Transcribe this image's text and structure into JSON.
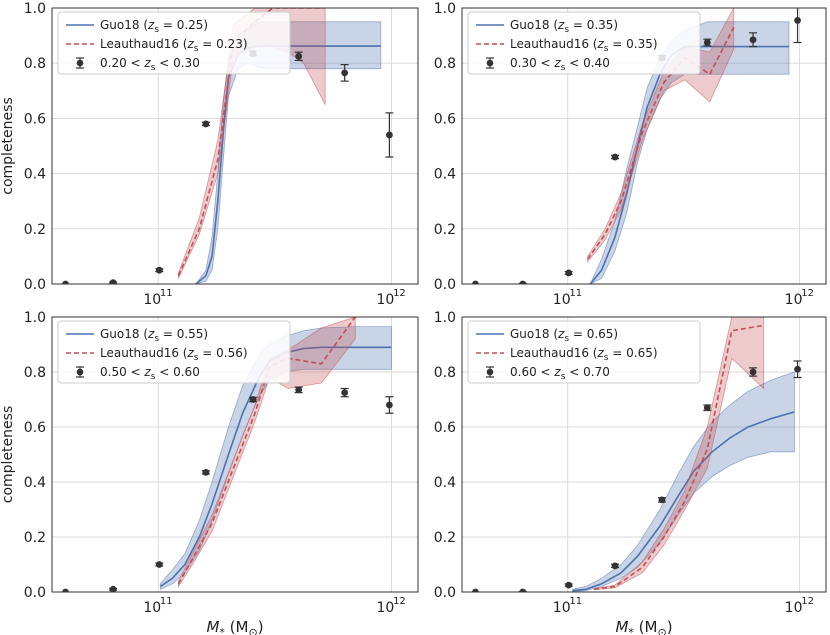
{
  "chart_data": [
    {
      "type": "line",
      "panel": "top-left",
      "xscale": "log",
      "xlim": [
        35000000000,
        1300000000000
      ],
      "ylim": [
        0,
        1.0
      ],
      "ylabel": "completeness",
      "xlabel": "",
      "legend_position": "top-left",
      "series": [
        {
          "name": "Guo18 (z_s = 0.25)",
          "legend_label": "Guo18 (",
          "z_label": "= 0.25)",
          "color": "#4c72b0",
          "style": "solid",
          "x": [
            145000000000.0,
            160000000000.0,
            170000000000.0,
            180000000000.0,
            190000000000.0,
            200000000000.0,
            220000000000.0,
            240000000000.0,
            270000000000.0,
            300000000000.0,
            400000000000.0,
            600000000000.0,
            900000000000.0
          ],
          "y": [
            0.0,
            0.03,
            0.1,
            0.3,
            0.55,
            0.75,
            0.83,
            0.855,
            0.862,
            0.862,
            0.862,
            0.862,
            0.862
          ],
          "band_lower": [
            0.0,
            0.01,
            0.05,
            0.2,
            0.45,
            0.68,
            0.78,
            0.8,
            0.785,
            0.78,
            0.78,
            0.78,
            0.78
          ],
          "band_upper": [
            0.0,
            0.05,
            0.17,
            0.4,
            0.66,
            0.82,
            0.87,
            0.92,
            0.95,
            0.95,
            0.95,
            0.95,
            0.95
          ]
        },
        {
          "name": "Leauthaud16 (z_s = 0.23)",
          "legend_label": "Leauthaud16 (",
          "z_label": "= 0.23)",
          "color": "#c44e52",
          "style": "dashed",
          "x": [
            122000000000.0,
            150000000000.0,
            180000000000.0,
            210000000000.0,
            260000000000.0,
            310000000000.0,
            360000000000.0,
            420000000000.0,
            520000000000.0
          ],
          "y": [
            0.03,
            0.2,
            0.45,
            0.88,
            0.95,
            1.0,
            1.0,
            1.0,
            1.0
          ],
          "band_lower": [
            0.02,
            0.18,
            0.4,
            0.82,
            0.86,
            0.86,
            0.84,
            0.8,
            0.65
          ],
          "band_upper": [
            0.04,
            0.24,
            0.52,
            0.94,
            1.0,
            1.0,
            1.0,
            1.0,
            1.0
          ]
        },
        {
          "name": "0.20 < z_s < 0.30",
          "type": "errorbar",
          "color": "#333333",
          "x": [
            40000000000.0,
            64000000000.0,
            101000000000.0,
            160000000000.0,
            255000000000.0,
            400000000000.0,
            630000000000.0,
            980000000000.0
          ],
          "y": [
            0.0,
            0.005,
            0.05,
            0.58,
            0.835,
            0.825,
            0.765,
            0.54
          ],
          "err": [
            0.0,
            0.003,
            0.005,
            0.006,
            0.008,
            0.015,
            0.03,
            0.08
          ]
        }
      ]
    },
    {
      "type": "line",
      "panel": "top-right",
      "xscale": "log",
      "xlim": [
        35000000000,
        1300000000000
      ],
      "ylim": [
        0,
        1.0
      ],
      "ylabel": "",
      "xlabel": "",
      "legend_position": "top-left",
      "series": [
        {
          "name": "Guo18 (z_s = 0.35)",
          "legend_label": "Guo18 (",
          "z_label": "= 0.35)",
          "color": "#4c72b0",
          "style": "solid",
          "x": [
            125000000000.0,
            140000000000.0,
            160000000000.0,
            180000000000.0,
            200000000000.0,
            220000000000.0,
            250000000000.0,
            280000000000.0,
            320000000000.0,
            400000000000.0,
            600000000000.0,
            900000000000.0
          ],
          "y": [
            0.0,
            0.05,
            0.17,
            0.33,
            0.5,
            0.64,
            0.76,
            0.83,
            0.86,
            0.86,
            0.86,
            0.86
          ],
          "band_lower": [
            0.0,
            0.02,
            0.12,
            0.26,
            0.44,
            0.56,
            0.67,
            0.73,
            0.76,
            0.76,
            0.76,
            0.76
          ],
          "band_upper": [
            0.0,
            0.09,
            0.23,
            0.42,
            0.57,
            0.71,
            0.82,
            0.88,
            0.92,
            0.95,
            0.95,
            0.95
          ]
        },
        {
          "name": "Leauthaud16 (z_s = 0.35)",
          "legend_label": "Leauthaud16 (",
          "z_label": "= 0.35)",
          "color": "#c44e52",
          "style": "dashed",
          "x": [
            122000000000.0,
            145000000000.0,
            170000000000.0,
            210000000000.0,
            260000000000.0,
            320000000000.0,
            410000000000.0,
            520000000000.0
          ],
          "y": [
            0.09,
            0.18,
            0.3,
            0.55,
            0.73,
            0.82,
            0.76,
            0.93
          ],
          "band_lower": [
            0.08,
            0.16,
            0.27,
            0.52,
            0.7,
            0.74,
            0.66,
            0.85
          ],
          "band_upper": [
            0.1,
            0.2,
            0.33,
            0.58,
            0.77,
            0.86,
            0.84,
            1.0
          ]
        },
        {
          "name": "0.30 < z_s < 0.40",
          "type": "errorbar",
          "color": "#333333",
          "x": [
            40000000000.0,
            64000000000.0,
            101000000000.0,
            160000000000.0,
            255000000000.0,
            400000000000.0,
            630000000000.0,
            980000000000.0
          ],
          "y": [
            0.0,
            0.0,
            0.04,
            0.46,
            0.82,
            0.875,
            0.885,
            0.955
          ],
          "err": [
            0.0,
            0.002,
            0.005,
            0.006,
            0.008,
            0.012,
            0.025,
            0.08
          ]
        }
      ]
    },
    {
      "type": "line",
      "panel": "bottom-left",
      "xscale": "log",
      "xlim": [
        35000000000,
        1300000000000
      ],
      "ylim": [
        0,
        1.0
      ],
      "ylabel": "completeness",
      "xlabel": "M* (M⊙)",
      "legend_position": "top-left",
      "series": [
        {
          "name": "Guo18 (z_s = 0.55)",
          "legend_label": "Guo18 (",
          "z_label": "= 0.55)",
          "color": "#4c72b0",
          "style": "solid",
          "x": [
            102000000000.0,
            115000000000.0,
            130000000000.0,
            150000000000.0,
            170000000000.0,
            200000000000.0,
            230000000000.0,
            270000000000.0,
            300000000000.0,
            350000000000.0,
            420000000000.0,
            500000000000.0,
            700000000000.0,
            1000000000000.0
          ],
          "y": [
            0.02,
            0.05,
            0.1,
            0.2,
            0.32,
            0.5,
            0.65,
            0.78,
            0.84,
            0.87,
            0.885,
            0.89,
            0.89,
            0.89
          ],
          "band_lower": [
            0.01,
            0.03,
            0.07,
            0.15,
            0.26,
            0.43,
            0.57,
            0.71,
            0.77,
            0.8,
            0.81,
            0.81,
            0.81,
            0.81
          ],
          "band_upper": [
            0.03,
            0.08,
            0.14,
            0.26,
            0.4,
            0.6,
            0.75,
            0.86,
            0.9,
            0.93,
            0.95,
            0.96,
            0.965,
            0.965
          ]
        },
        {
          "name": "Leauthaud16 (z_s = 0.56)",
          "legend_label": "Leauthaud16 (",
          "z_label": "= 0.56)",
          "color": "#c44e52",
          "style": "dashed",
          "x": [
            122000000000.0,
            140000000000.0,
            170000000000.0,
            210000000000.0,
            260000000000.0,
            300000000000.0,
            360000000000.0,
            500000000000.0,
            700000000000.0
          ],
          "y": [
            0.03,
            0.12,
            0.25,
            0.45,
            0.65,
            0.82,
            0.85,
            0.83,
            1.0
          ],
          "band_lower": [
            0.02,
            0.1,
            0.22,
            0.42,
            0.62,
            0.78,
            0.74,
            0.76,
            0.92
          ],
          "band_upper": [
            0.04,
            0.14,
            0.28,
            0.48,
            0.68,
            0.85,
            0.88,
            0.96,
            1.0
          ]
        },
        {
          "name": "0.50 < z_s < 0.60",
          "type": "errorbar",
          "color": "#333333",
          "x": [
            40000000000.0,
            64000000000.0,
            101000000000.0,
            160000000000.0,
            255000000000.0,
            400000000000.0,
            630000000000.0,
            980000000000.0
          ],
          "y": [
            0.0,
            0.01,
            0.1,
            0.435,
            0.7,
            0.735,
            0.725,
            0.68
          ],
          "err": [
            0.0,
            0.003,
            0.005,
            0.006,
            0.008,
            0.01,
            0.015,
            0.03
          ]
        }
      ]
    },
    {
      "type": "line",
      "panel": "bottom-right",
      "xscale": "log",
      "xlim": [
        35000000000,
        1300000000000
      ],
      "ylim": [
        0,
        1.0
      ],
      "ylabel": "",
      "xlabel": "M* (M⊙)",
      "legend_position": "top-left",
      "series": [
        {
          "name": "Guo18 (z_s = 0.65)",
          "legend_label": "Guo18 (",
          "z_label": "= 0.65)",
          "color": "#4c72b0",
          "style": "solid",
          "x": [
            105000000000.0,
            120000000000.0,
            140000000000.0,
            170000000000.0,
            200000000000.0,
            250000000000.0,
            300000000000.0,
            350000000000.0,
            420000000000.0,
            500000000000.0,
            600000000000.0,
            750000000000.0,
            950000000000.0
          ],
          "y": [
            0.005,
            0.01,
            0.03,
            0.07,
            0.13,
            0.24,
            0.35,
            0.44,
            0.51,
            0.56,
            0.6,
            0.63,
            0.655
          ],
          "band_lower": [
            0.002,
            0.005,
            0.02,
            0.05,
            0.09,
            0.18,
            0.28,
            0.36,
            0.42,
            0.46,
            0.49,
            0.51,
            0.51
          ],
          "band_upper": [
            0.01,
            0.02,
            0.05,
            0.1,
            0.17,
            0.3,
            0.43,
            0.53,
            0.62,
            0.68,
            0.73,
            0.77,
            0.8
          ]
        },
        {
          "name": "Leauthaud16 (z_s = 0.65)",
          "legend_label": "Leauthaud16 (",
          "z_label": "= 0.65)",
          "color": "#c44e52",
          "style": "dashed",
          "x": [
            130000000000.0,
            160000000000.0,
            210000000000.0,
            260000000000.0,
            320000000000.0,
            400000000000.0,
            510000000000.0,
            700000000000.0
          ],
          "y": [
            0.01,
            0.02,
            0.09,
            0.2,
            0.33,
            0.52,
            0.95,
            0.97
          ],
          "band_lower": [
            0.008,
            0.015,
            0.07,
            0.17,
            0.3,
            0.45,
            0.85,
            0.74
          ],
          "band_upper": [
            0.012,
            0.025,
            0.11,
            0.23,
            0.37,
            0.6,
            1.0,
            1.0
          ]
        },
        {
          "name": "0.60 < z_s < 0.70",
          "type": "errorbar",
          "color": "#333333",
          "x": [
            40000000000.0,
            64000000000.0,
            101000000000.0,
            160000000000.0,
            255000000000.0,
            400000000000.0,
            630000000000.0,
            980000000000.0
          ],
          "y": [
            0.0,
            0.0,
            0.025,
            0.095,
            0.335,
            0.67,
            0.8,
            0.81
          ],
          "err": [
            0.0,
            0.002,
            0.004,
            0.006,
            0.008,
            0.01,
            0.015,
            0.03
          ]
        }
      ]
    }
  ],
  "axes": {
    "yticks": [
      "0.0",
      "0.2",
      "0.4",
      "0.6",
      "0.8",
      "1.0"
    ],
    "xtick_base": "10",
    "xtick_exp_11": "11",
    "xtick_exp_12": "12",
    "ylabel": "completeness",
    "xlabel_symbol": "M",
    "xlabel_sub": "*",
    "xlabel_unit_open": " (M",
    "xlabel_unit_sub": "⊙",
    "xlabel_unit_close": ")",
    "z_symbol": "z",
    "z_sub": "s",
    "errorbar_label_lt": "<",
    "errorbar_label_z": "z",
    "errorbar_label_zsub": "s"
  }
}
